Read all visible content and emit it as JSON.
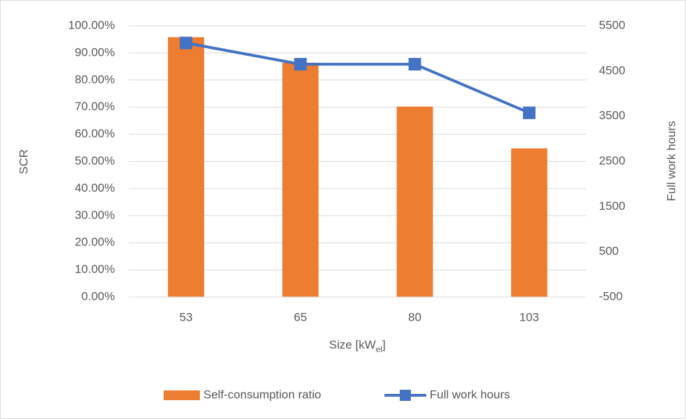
{
  "chart_data": {
    "type": "bar_line",
    "categories": [
      "53",
      "65",
      "80",
      "103"
    ],
    "xlabel": [
      "Size [kW",
      "el",
      "]"
    ],
    "ylabel": "SCR",
    "y2label": "Full work hours",
    "series": [
      {
        "name": "Self-consumption ratio",
        "color": "#ed7d31",
        "type": "bar",
        "values": [
          95.8,
          86.4,
          70.2,
          54.8
        ]
      },
      {
        "name": "Full work hours",
        "color": "#4472c4",
        "type": "line",
        "axis": "y2",
        "values": [
          5120,
          4650,
          4650,
          3575
        ]
      }
    ],
    "ylim": [
      0,
      100
    ],
    "yticks": [
      {
        "value": 0,
        "label": "0.00%"
      },
      {
        "value": 10,
        "label": "10.00%"
      },
      {
        "value": 20,
        "label": "20.00%"
      },
      {
        "value": 30,
        "label": "30.00%"
      },
      {
        "value": 40,
        "label": "40.00%"
      },
      {
        "value": 50,
        "label": "50.00%"
      },
      {
        "value": 60,
        "label": "60.00%"
      },
      {
        "value": 70,
        "label": "70.00%"
      },
      {
        "value": 80,
        "label": "80.00%"
      },
      {
        "value": 90,
        "label": "90.00%"
      },
      {
        "value": 100,
        "label": "100.00%"
      }
    ],
    "y2lim": [
      -500,
      5500
    ],
    "y2ticks": [
      -500,
      500,
      1500,
      2500,
      3500,
      4500,
      5500
    ],
    "grid": true,
    "legend": "bottom"
  }
}
